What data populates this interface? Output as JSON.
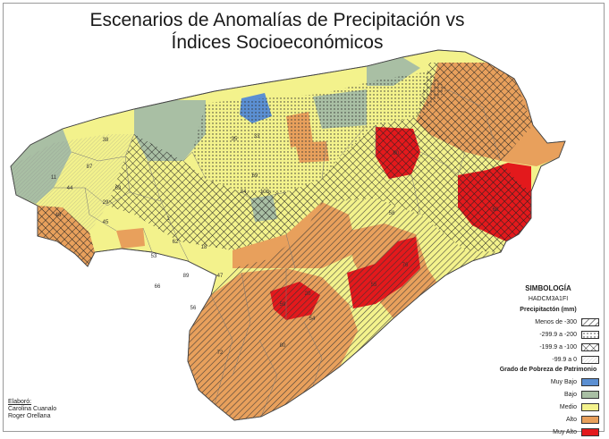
{
  "title": {
    "line1": "Escenarios de Anomalías de Precipitación vs",
    "line2": "Índices Socioeconómicos"
  },
  "legend": {
    "header": "SIMBOLOGÍA",
    "model": "HADCM3A1FI",
    "precip_title": "Precipitactón (mm)",
    "precip_items": [
      {
        "label": "Menos de -300",
        "pattern": "diagonal-lines"
      },
      {
        "label": "-299.9 a -200",
        "pattern": "dots"
      },
      {
        "label": "-199.9 a -100",
        "pattern": "cross-hatch"
      },
      {
        "label": "-99.9 a 0",
        "pattern": "fine-lines"
      }
    ],
    "poverty_title": "Grado de Pobreza de Patrimonio",
    "poverty_items": [
      {
        "label": "Muy Bajo",
        "color": "#5b8fd2"
      },
      {
        "label": "Bajo",
        "color": "#a9bfa4"
      },
      {
        "label": "Medio",
        "color": "#f3f28c"
      },
      {
        "label": "Alto",
        "color": "#e8a05c"
      },
      {
        "label": "Muy Alto",
        "color": "#e3191c"
      }
    ]
  },
  "credits": {
    "label": "Elaboró:",
    "names": [
      "Carolina Cuanalo",
      "Roger Orellana"
    ]
  },
  "map_labels": [
    "38",
    "87",
    "11",
    "44",
    "63",
    "48",
    "29",
    "45",
    "1",
    "62",
    "18",
    "53",
    "89",
    "66",
    "47",
    "56",
    "69",
    "33",
    "35",
    "58",
    "34",
    "103",
    "90",
    "68",
    "20",
    "59",
    "54",
    "55",
    "76",
    "80",
    "72"
  ]
}
